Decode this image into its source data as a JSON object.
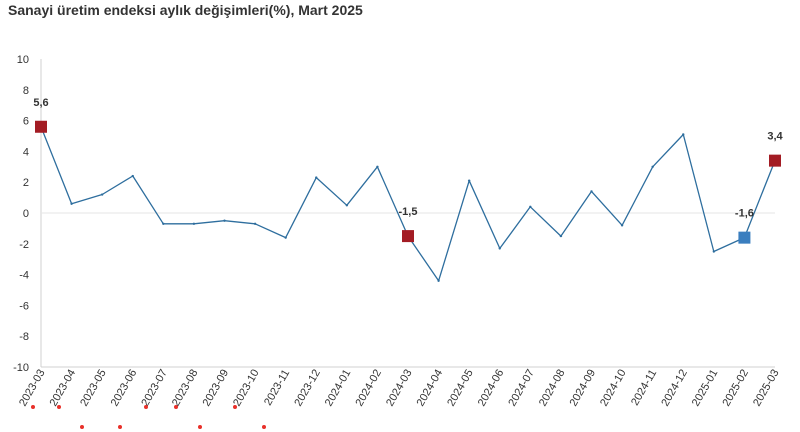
{
  "title": "Sanayi üretim endeksi aylık değişimleri(%), Mart 2025",
  "chart_data": {
    "type": "line",
    "title": "Sanayi üretim endeksi aylık değişimleri(%), Mart 2025",
    "xlabel": "",
    "ylabel": "",
    "ylim": [
      -10,
      10
    ],
    "yticks": [
      10,
      8,
      6,
      4,
      2,
      0,
      -2,
      -4,
      -6,
      -8,
      -10
    ],
    "grid": false,
    "categories": [
      "2023-03",
      "2023-04",
      "2023-05",
      "2023-06",
      "2023-07",
      "2023-08",
      "2023-09",
      "2023-10",
      "2023-11",
      "2023-12",
      "2024-01",
      "2024-02",
      "2024-03",
      "2024-04",
      "2024-05",
      "2024-06",
      "2024-07",
      "2024-08",
      "2024-09",
      "2024-10",
      "2024-11",
      "2024-12",
      "2025-01",
      "2025-02",
      "2025-03"
    ],
    "series": [
      {
        "color": "#2e6e9e",
        "values": [
          5.6,
          0.6,
          1.2,
          2.4,
          -0.7,
          -0.7,
          -0.5,
          -0.7,
          -1.6,
          2.3,
          0.5,
          3.0,
          -1.5,
          -4.4,
          2.1,
          -2.3,
          0.4,
          -1.5,
          1.4,
          -0.8,
          3.0,
          5.1,
          -2.5,
          -1.6,
          3.4
        ]
      }
    ],
    "highlights": [
      {
        "category": "2023-03",
        "value": 5.6,
        "label": "5,6",
        "color": "#a31c24"
      },
      {
        "category": "2024-03",
        "value": -1.5,
        "label": "-1,5",
        "color": "#a31c24"
      },
      {
        "category": "2025-02",
        "value": -1.6,
        "label": "-1,6",
        "color": "#3a7ebf"
      },
      {
        "category": "2025-03",
        "value": 3.4,
        "label": "3,4",
        "color": "#a31c24"
      }
    ],
    "colors": {
      "line": "#2e6e9e",
      "axis": "#d0d0d0",
      "marker_red": "#a31c24",
      "marker_blue": "#3a7ebf",
      "stray_dots": "#e8302a"
    }
  }
}
